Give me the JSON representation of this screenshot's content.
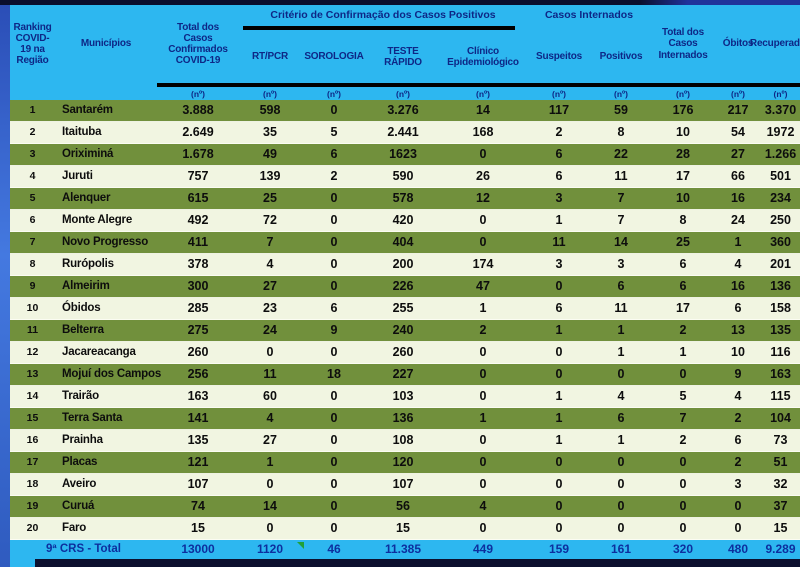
{
  "colors": {
    "header_bg": "#2db7f0",
    "header_text": "#0e2786",
    "row_odd": "#71903c",
    "row_even": "#f1f5e1",
    "total_text": "#0d2f9e",
    "border_dark": "#0c102f",
    "strip_blue": "#4479e0",
    "marker_green": "#21a038"
  },
  "table": {
    "groups": {
      "criterio": "Critério de Confirmação dos Casos Positivos",
      "internados": "Casos Internados"
    },
    "headers": {
      "rank": "Ranking\nCOVID-\n19 na\nRegião",
      "municipio": "Municípios",
      "total": "Total dos\nCasos\nConfirmados\nCOVID-19",
      "rtpcr": "RT/PCR",
      "sorologia": "SOROLOGIA",
      "teste": "TESTE\nRÁPIDO",
      "clinico": "Clínico\nEpidemiológico",
      "suspeitos": "Suspeitos",
      "positivos": "Positivos",
      "internados_total": "Total dos\nCasos\nInternados",
      "obitos": "Óbitos",
      "recuperados": "Recuperados"
    },
    "unit": "(nº)",
    "rows": [
      {
        "rank": "1",
        "name": "Santarém",
        "values": [
          "3.888",
          "598",
          "0",
          "3.276",
          "14",
          "117",
          "59",
          "176",
          "217",
          "3.370"
        ]
      },
      {
        "rank": "2",
        "name": "Itaituba",
        "values": [
          "2.649",
          "35",
          "5",
          "2.441",
          "168",
          "2",
          "8",
          "10",
          "54",
          "1972"
        ]
      },
      {
        "rank": "3",
        "name": "Oriximiná",
        "values": [
          "1.678",
          "49",
          "6",
          "1623",
          "0",
          "6",
          "22",
          "28",
          "27",
          "1.266"
        ]
      },
      {
        "rank": "4",
        "name": "Juruti",
        "values": [
          "757",
          "139",
          "2",
          "590",
          "26",
          "6",
          "11",
          "17",
          "66",
          "501"
        ]
      },
      {
        "rank": "5",
        "name": "Alenquer",
        "values": [
          "615",
          "25",
          "0",
          "578",
          "12",
          "3",
          "7",
          "10",
          "16",
          "234"
        ]
      },
      {
        "rank": "6",
        "name": "Monte Alegre",
        "values": [
          "492",
          "72",
          "0",
          "420",
          "0",
          "1",
          "7",
          "8",
          "24",
          "250"
        ]
      },
      {
        "rank": "7",
        "name": "Novo Progresso",
        "values": [
          "411",
          "7",
          "0",
          "404",
          "0",
          "11",
          "14",
          "25",
          "1",
          "360"
        ]
      },
      {
        "rank": "8",
        "name": "Rurópolis",
        "values": [
          "378",
          "4",
          "0",
          "200",
          "174",
          "3",
          "3",
          "6",
          "4",
          "201"
        ]
      },
      {
        "rank": "9",
        "name": "Almeirim",
        "values": [
          "300",
          "27",
          "0",
          "226",
          "47",
          "0",
          "6",
          "6",
          "16",
          "136"
        ]
      },
      {
        "rank": "10",
        "name": "Óbidos",
        "values": [
          "285",
          "23",
          "6",
          "255",
          "1",
          "6",
          "11",
          "17",
          "6",
          "158"
        ]
      },
      {
        "rank": "11",
        "name": "Belterra",
        "values": [
          "275",
          "24",
          "9",
          "240",
          "2",
          "1",
          "1",
          "2",
          "13",
          "135"
        ]
      },
      {
        "rank": "12",
        "name": "Jacareacanga",
        "values": [
          "260",
          "0",
          "0",
          "260",
          "0",
          "0",
          "1",
          "1",
          "10",
          "116"
        ]
      },
      {
        "rank": "13",
        "name": "Mojuí dos Campos",
        "values": [
          "256",
          "11",
          "18",
          "227",
          "0",
          "0",
          "0",
          "0",
          "9",
          "163"
        ]
      },
      {
        "rank": "14",
        "name": "Trairão",
        "values": [
          "163",
          "60",
          "0",
          "103",
          "0",
          "1",
          "4",
          "5",
          "4",
          "115"
        ]
      },
      {
        "rank": "15",
        "name": "Terra Santa",
        "values": [
          "141",
          "4",
          "0",
          "136",
          "1",
          "1",
          "6",
          "7",
          "2",
          "104"
        ]
      },
      {
        "rank": "16",
        "name": "Prainha",
        "values": [
          "135",
          "27",
          "0",
          "108",
          "0",
          "1",
          "1",
          "2",
          "6",
          "73"
        ]
      },
      {
        "rank": "17",
        "name": "Placas",
        "values": [
          "121",
          "1",
          "0",
          "120",
          "0",
          "0",
          "0",
          "0",
          "2",
          "51"
        ]
      },
      {
        "rank": "18",
        "name": "Aveiro",
        "values": [
          "107",
          "0",
          "0",
          "107",
          "0",
          "0",
          "0",
          "0",
          "3",
          "32"
        ]
      },
      {
        "rank": "19",
        "name": "Curuá",
        "values": [
          "74",
          "14",
          "0",
          "56",
          "4",
          "0",
          "0",
          "0",
          "0",
          "37"
        ]
      },
      {
        "rank": "20",
        "name": "Faro",
        "values": [
          "15",
          "0",
          "0",
          "15",
          "0",
          "0",
          "0",
          "0",
          "0",
          "15"
        ]
      }
    ],
    "total": {
      "label": "9ª CRS - Total",
      "values": [
        "13000",
        "1120",
        "46",
        "11.385",
        "449",
        "159",
        "161",
        "320",
        "480",
        "9.289"
      ]
    }
  }
}
